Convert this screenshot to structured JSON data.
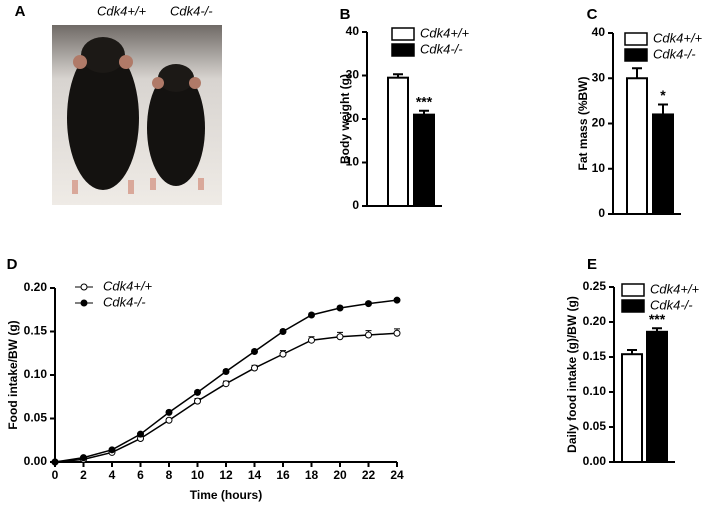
{
  "chart_data": [
    {
      "type": "image",
      "panel": "A",
      "labels": [
        "Cdk4+/+",
        "Cdk4-/-"
      ]
    },
    {
      "type": "bar",
      "panel": "B",
      "ylabel": "Body weight (g)",
      "ylim": [
        0,
        40
      ],
      "yticks": [
        0,
        10,
        20,
        30,
        40
      ],
      "series": [
        {
          "name": "Cdk4+/+",
          "color": "#ffffff",
          "values": [
            29.5
          ],
          "errors": [
            0.8
          ]
        },
        {
          "name": "Cdk4-/-",
          "color": "#000000",
          "values": [
            21
          ],
          "errors": [
            0.9
          ],
          "annotation": "***"
        }
      ]
    },
    {
      "type": "bar",
      "panel": "C",
      "ylabel": "Fat mass  (%BW)",
      "ylim": [
        0,
        40
      ],
      "yticks": [
        0,
        10,
        20,
        30,
        40
      ],
      "series": [
        {
          "name": "Cdk4+/+",
          "color": "#ffffff",
          "values": [
            30
          ],
          "errors": [
            2.2
          ]
        },
        {
          "name": "Cdk4-/-",
          "color": "#000000",
          "values": [
            22
          ],
          "errors": [
            2.2
          ],
          "annotation": "*"
        }
      ]
    },
    {
      "type": "line",
      "panel": "D",
      "xlabel": "Time (hours)",
      "ylabel": "Food intake/BW (g)",
      "x": [
        0,
        2,
        4,
        6,
        8,
        10,
        12,
        14,
        16,
        18,
        20,
        22,
        24
      ],
      "xlim": [
        0,
        24
      ],
      "xticks": [
        0,
        2,
        4,
        6,
        8,
        10,
        12,
        14,
        16,
        18,
        20,
        22,
        24
      ],
      "ylim": [
        0,
        0.2
      ],
      "yticks": [
        {
          "value": 0,
          "label": "0.00"
        },
        0.05,
        {
          "value": 0.1,
          "label": "0.10"
        },
        0.15,
        {
          "value": 0.2,
          "label": "0.20"
        }
      ],
      "series": [
        {
          "name": "Cdk4+/+",
          "color": "#000000",
          "marker_fill": "#ffffff",
          "values": [
            0,
            0.003,
            0.011,
            0.027,
            0.048,
            0.07,
            0.09,
            0.108,
            0.124,
            0.14,
            0.144,
            0.146,
            0.148
          ],
          "errors": [
            0,
            0.001,
            0.001,
            0.002,
            0.002,
            0.003,
            0.003,
            0.003,
            0.004,
            0.004,
            0.005,
            0.005,
            0.005
          ]
        },
        {
          "name": "Cdk4-/-",
          "color": "#000000",
          "marker_fill": "#000000",
          "values": [
            0,
            0.005,
            0.014,
            0.032,
            0.057,
            0.08,
            0.104,
            0.127,
            0.15,
            0.169,
            0.177,
            0.182,
            0.186
          ],
          "errors": [
            0,
            0.001,
            0.001,
            0.001,
            0.002,
            0.002,
            0.002,
            0.002,
            0.002,
            0.002,
            0.002,
            0.002,
            0.002
          ]
        }
      ]
    },
    {
      "type": "bar",
      "panel": "E",
      "ylabel": "Daily food intake (g)/BW (g)",
      "ylim": [
        0,
        0.25
      ],
      "yticks": [
        {
          "value": 0,
          "label": "0.00"
        },
        0.05,
        {
          "value": 0.1,
          "label": "0.10"
        },
        0.15,
        {
          "value": 0.2,
          "label": "0.20"
        },
        0.25
      ],
      "series": [
        {
          "name": "Cdk4+/+",
          "color": "#ffffff",
          "values": [
            0.154
          ],
          "errors": [
            0.006
          ]
        },
        {
          "name": "Cdk4-/-",
          "color": "#000000",
          "values": [
            0.186
          ],
          "errors": [
            0.005
          ],
          "annotation": "***"
        }
      ]
    }
  ]
}
